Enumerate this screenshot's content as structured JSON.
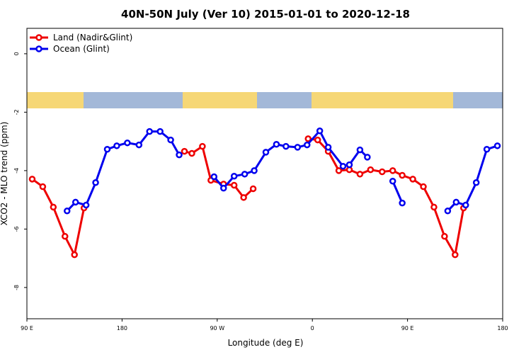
{
  "chart_data": {
    "type": "line",
    "title": "40N-50N July (Ver 10)   2015-01-01 to 2020-12-18",
    "xlabel": "Longitude (deg E)",
    "ylabel": "XCO2 - MLO trend (ppm)",
    "xlim": [
      90,
      540
    ],
    "ylim": [
      -9.07,
      0.87
    ],
    "xticks": [
      {
        "value": 90,
        "label": "90 E"
      },
      180,
      {
        "value": 270,
        "label": "90 W"
      },
      {
        "value": 360,
        "label": "0"
      },
      {
        "value": 450,
        "label": "90 E"
      },
      {
        "value": 540,
        "label": "180"
      }
    ],
    "yticks": [
      0,
      -2,
      -4,
      -6,
      -8
    ],
    "legend": "top-left",
    "series": [
      {
        "name": "Land (Nadir&Glint)",
        "color": "#ee0000",
        "x": [
          95,
          105,
          115,
          126,
          135,
          144,
          null,
          239,
          246,
          256,
          264,
          276,
          286,
          295,
          304,
          null,
          356,
          365,
          375,
          385,
          395,
          405,
          415,
          426,
          436,
          445,
          455,
          465,
          475,
          485,
          495,
          503
        ],
        "values": [
          -4.29,
          -4.55,
          -5.25,
          -6.25,
          -6.88,
          -5.28,
          null,
          -3.34,
          -3.41,
          -3.17,
          -4.33,
          -4.46,
          -4.5,
          -4.92,
          -4.62,
          null,
          -2.91,
          -2.95,
          -3.34,
          -4.0,
          -3.97,
          -4.12,
          -3.97,
          -4.04,
          -4.0,
          -4.16,
          -4.29,
          -4.55,
          -5.25,
          -6.25,
          -6.88,
          -5.28
        ]
      },
      {
        "name": "Ocean (Glint)",
        "color": "#0000ee",
        "x": [
          128,
          136,
          146,
          155,
          166,
          175,
          185,
          196,
          206,
          216,
          226,
          234,
          null,
          267,
          276,
          286,
          296,
          305,
          316,
          326,
          335,
          346,
          355,
          367,
          375,
          389,
          395,
          405,
          412,
          null,
          436,
          445,
          null,
          488,
          496,
          505,
          515,
          525,
          535
        ],
        "values": [
          -5.38,
          -5.08,
          -5.18,
          -4.41,
          -3.27,
          -3.15,
          -3.05,
          -3.12,
          -2.66,
          -2.66,
          -2.95,
          -3.46,
          null,
          -4.21,
          -4.6,
          -4.19,
          -4.12,
          -4.0,
          -3.37,
          -3.1,
          -3.17,
          -3.2,
          -3.12,
          -2.64,
          -3.2,
          -3.85,
          -3.8,
          -3.29,
          -3.54,
          null,
          -4.36,
          -5.11,
          null,
          -5.38,
          -5.08,
          -5.18,
          -4.41,
          -3.27,
          -3.15
        ]
      }
    ]
  }
}
